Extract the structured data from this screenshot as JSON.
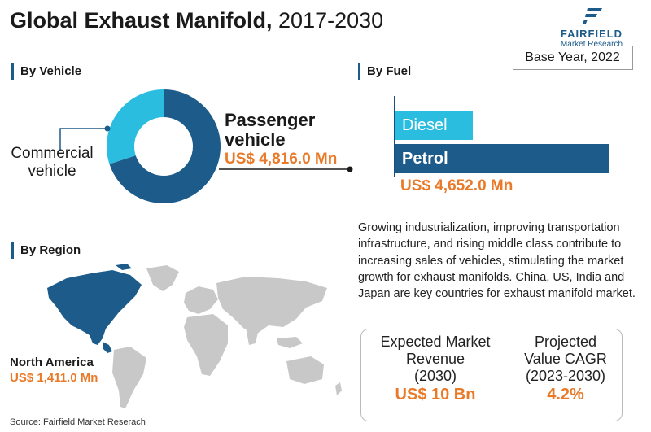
{
  "header": {
    "title_bold": "Global Exhaust Manifold,",
    "title_years": " 2017-2030",
    "logo_name": "FAIRFIELD",
    "logo_sub": "Market Research",
    "base_year": "Base Year, 2022"
  },
  "sections": {
    "vehicle": "By Vehicle",
    "fuel": "By Fuel",
    "region": "By Region"
  },
  "region": {
    "name": "North America",
    "value": "US$ 1,411.0 Mn"
  },
  "description": "Growing industrialization, improving transportation infrastructure, and rising middle class contribute to increasing sales of vehicles, stimulating the market growth for exhaust manifolds. China, US, India and Japan are key countries for exhaust manifold market.",
  "stats": {
    "revenue_label_1": "Expected Market",
    "revenue_label_2": "Revenue",
    "revenue_label_3": "(2030)",
    "revenue_value": "US$ 10 Bn",
    "cagr_label_1": "Projected",
    "cagr_label_2": "Value CAGR",
    "cagr_label_3": "(2023-2030)",
    "cagr_value": "4.2%"
  },
  "source": "Source: Fairfield Market Reserach",
  "colors": {
    "dark_blue": "#1d5c8a",
    "light_blue": "#2bbde0",
    "orange": "#e97a29",
    "map_gray": "#c8c8c8"
  },
  "chart_data": [
    {
      "type": "pie",
      "subtype": "donut",
      "categories": [
        "Passenger vehicle",
        "Commercial vehicle"
      ],
      "values": [
        70,
        30
      ],
      "value_labels": [
        "US$ 4,816.0 Mn",
        ""
      ],
      "colors": [
        "#1d5c8a",
        "#2bbde0"
      ],
      "title": "By Vehicle",
      "label_line1": "Passenger",
      "label_line2": "vehicle",
      "commercial_line1": "Commercial",
      "commercial_line2": "vehicle"
    },
    {
      "type": "bar",
      "orientation": "horizontal",
      "categories": [
        "Diesel",
        "Petrol"
      ],
      "values": [
        1,
        2.75
      ],
      "colors": [
        "#2bbde0",
        "#1d5c8a"
      ],
      "value_label": "US$ 4,652.0 Mn",
      "title": "By Fuel"
    }
  ]
}
